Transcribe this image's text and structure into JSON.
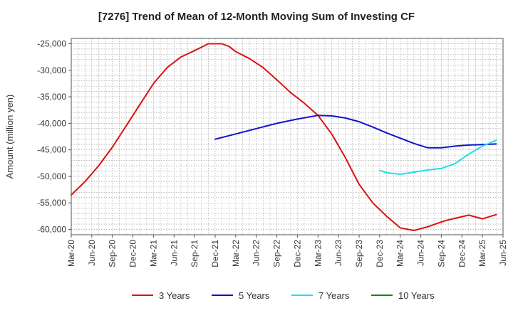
{
  "chart_data": {
    "type": "line",
    "title": "[7276]  Trend of Mean of 12-Month Moving Sum of Investing CF",
    "xlabel": "",
    "ylabel": "Amount (million yen)",
    "ylim": [
      -61000,
      -24000
    ],
    "yticks": [
      -25000,
      -30000,
      -35000,
      -40000,
      -45000,
      -50000,
      -55000,
      -60000
    ],
    "ytick_labels": [
      "-25,000",
      "-30,000",
      "-35,000",
      "-40,000",
      "-45,000",
      "-50,000",
      "-55,000",
      "-60,000"
    ],
    "x_tick_labels": [
      "Mar-20",
      "Jun-20",
      "Sep-20",
      "Dec-20",
      "Mar-21",
      "Jun-21",
      "Sep-21",
      "Dec-21",
      "Mar-22",
      "Jun-22",
      "Sep-22",
      "Dec-22",
      "Mar-23",
      "Jun-23",
      "Sep-23",
      "Dec-23",
      "Mar-24",
      "Jun-24",
      "Sep-24",
      "Dec-24",
      "Mar-25",
      "Jun-25"
    ],
    "x_unit": "months since Mar-20",
    "x_range": [
      0,
      63
    ],
    "grid": true,
    "legend_position": "bottom",
    "series": [
      {
        "name": "3 Years",
        "color": "#dd1111",
        "x": [
          0,
          2,
          4,
          6,
          8,
          10,
          12,
          14,
          16,
          18,
          20,
          22,
          23,
          24,
          26,
          28,
          30,
          32,
          34,
          36,
          38,
          40,
          42,
          44,
          46,
          48,
          50,
          52,
          54,
          55,
          56,
          58,
          60,
          62
        ],
        "y": [
          -53500,
          -51000,
          -48000,
          -44500,
          -40500,
          -36500,
          -32500,
          -29500,
          -27500,
          -26300,
          -25000,
          -25000,
          -25500,
          -26500,
          -27800,
          -29500,
          -31800,
          -34200,
          -36200,
          -38500,
          -42000,
          -46500,
          -51500,
          -55000,
          -57500,
          -59700,
          -60200,
          -59500,
          -58600,
          -58200,
          -57900,
          -57300,
          -58000,
          -57200
        ]
      },
      {
        "name": "5 Years",
        "color": "#1111cc",
        "x": [
          21,
          24,
          27,
          30,
          33,
          36,
          38,
          40,
          42,
          44,
          46,
          48,
          50,
          52,
          54,
          56,
          58,
          60,
          62
        ],
        "y": [
          -43000,
          -42000,
          -41000,
          -40000,
          -39200,
          -38500,
          -38600,
          -39000,
          -39700,
          -40700,
          -41800,
          -42800,
          -43800,
          -44600,
          -44600,
          -44300,
          -44100,
          -44000,
          -43900
        ]
      },
      {
        "name": "7 Years",
        "color": "#22ddee",
        "x": [
          45,
          46,
          48,
          50,
          52,
          54,
          56,
          58,
          60,
          62
        ],
        "y": [
          -48900,
          -49300,
          -49600,
          -49200,
          -48800,
          -48500,
          -47600,
          -45800,
          -44300,
          -43200
        ]
      },
      {
        "name": "10 Years",
        "color": "#118811",
        "x": [],
        "y": []
      }
    ]
  }
}
